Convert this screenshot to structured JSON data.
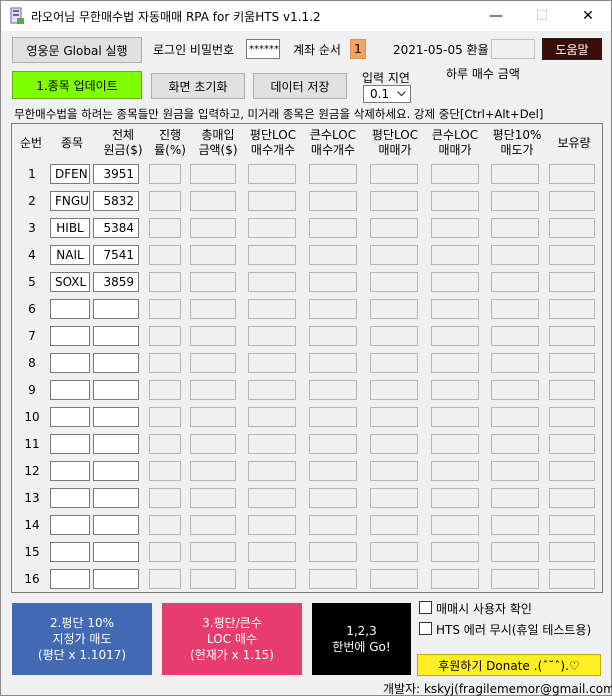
{
  "window": {
    "title": "라오어님 무한매수법 자동매매 RPA for 키움HTS v1.1.2",
    "minimize": "—",
    "maximize": "☐",
    "close": "✕"
  },
  "toolbar": {
    "global_button": "영웅문 Global 실행",
    "login_pw_label": "로그인 비밀번호",
    "login_pw_value": "******",
    "account_order_label": "계좌 순서",
    "account_order_value": "1",
    "date_rate_label": "2021-05-05 환율",
    "rate_value": "",
    "help_button": "도움말",
    "update_button": "1.종목 업데이트",
    "reset_button": "화면 초기화",
    "save_button": "데이터 저장",
    "delay_label": "입력 지연",
    "delay_value": "0.1",
    "daily_amount_label": "하루 매수 금액",
    "instructions": "무한매수법을 하려는 종목들만 원금을 입력하고, 미거래 종목은 원금을 삭제하세요. 강제 중단[Ctrl+Alt+Del]"
  },
  "table": {
    "headers": [
      "순번",
      "종목",
      "전체\n원금($)",
      "진행\n률(%)",
      "총매입\n금액($)",
      "평단LOC\n매수개수",
      "큰수LOC\n매수개수",
      "평단LOC\n매매가",
      "큰수LOC\n매매가",
      "평단10%\n매도가",
      "보유량"
    ],
    "rows": [
      {
        "no": "1",
        "symbol": "DFEN",
        "amount": "3951"
      },
      {
        "no": "2",
        "symbol": "FNGU",
        "amount": "5832"
      },
      {
        "no": "3",
        "symbol": "HIBL",
        "amount": "5384"
      },
      {
        "no": "4",
        "symbol": "NAIL",
        "amount": "7541"
      },
      {
        "no": "5",
        "symbol": "SOXL",
        "amount": "3859"
      },
      {
        "no": "6",
        "symbol": "",
        "amount": ""
      },
      {
        "no": "7",
        "symbol": "",
        "amount": ""
      },
      {
        "no": "8",
        "symbol": "",
        "amount": ""
      },
      {
        "no": "9",
        "symbol": "",
        "amount": ""
      },
      {
        "no": "10",
        "symbol": "",
        "amount": ""
      },
      {
        "no": "11",
        "symbol": "",
        "amount": ""
      },
      {
        "no": "12",
        "symbol": "",
        "amount": ""
      },
      {
        "no": "13",
        "symbol": "",
        "amount": ""
      },
      {
        "no": "14",
        "symbol": "",
        "amount": ""
      },
      {
        "no": "15",
        "symbol": "",
        "amount": ""
      },
      {
        "no": "16",
        "symbol": "",
        "amount": ""
      }
    ]
  },
  "actions": {
    "sell_button": "2.평단 10%\n지정가 매도\n(평단 x 1.1017)",
    "buy_button": "3.평단/큰수\nLOC 매수\n(현재가 x 1.15)",
    "all_button": "1,2,3\n한번에 Go!",
    "confirm_label": "매매시 사용자 확인",
    "ignore_label": "HTS 에러 무시(휴일 테스트용)",
    "donate_button": "후원하기 Donate ․(ˆ˘ˆ)․♡",
    "developer": "개발자: kskyj(fragilememor@gmail.com)"
  },
  "colors": {
    "update_button": "#7fff00",
    "sell_button": "#4169b4",
    "buy_button": "#e83c6e",
    "all_button": "#000000",
    "help_button": "#3a0d08",
    "donate_button": "#ffee22",
    "account_order": "#f4a460"
  }
}
